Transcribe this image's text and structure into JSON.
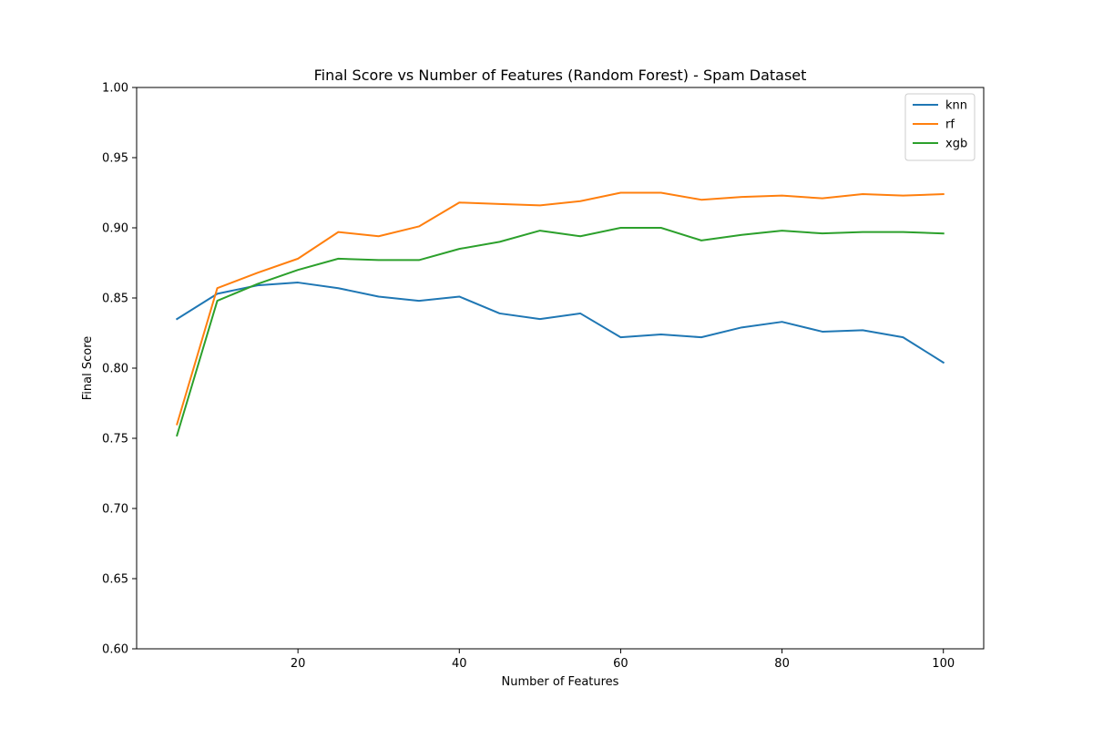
{
  "chart_data": {
    "type": "line",
    "title": "Final Score vs Number of Features (Random Forest) - Spam Dataset",
    "xlabel": "Number of Features",
    "ylabel": "Final Score",
    "xlim": [
      0,
      105
    ],
    "ylim": [
      0.6,
      1.0
    ],
    "xticks": [
      20,
      40,
      60,
      80,
      100
    ],
    "xtick_labels": [
      "20",
      "40",
      "60",
      "80",
      "100"
    ],
    "yticks": [
      0.6,
      0.65,
      0.7,
      0.75,
      0.8,
      0.85,
      0.9,
      0.95,
      1.0
    ],
    "ytick_labels": [
      "0.60",
      "0.65",
      "0.70",
      "0.75",
      "0.80",
      "0.85",
      "0.90",
      "0.95",
      "1.00"
    ],
    "grid": false,
    "legend_position": "top-right",
    "x": [
      5,
      10,
      15,
      20,
      25,
      30,
      35,
      40,
      45,
      50,
      55,
      60,
      65,
      70,
      75,
      80,
      85,
      90,
      95,
      100
    ],
    "series": [
      {
        "name": "knn",
        "color": "#1f77b4",
        "values": [
          0.835,
          0.853,
          0.859,
          0.861,
          0.857,
          0.851,
          0.848,
          0.851,
          0.839,
          0.835,
          0.839,
          0.822,
          0.824,
          0.822,
          0.829,
          0.833,
          0.826,
          0.827,
          0.822,
          0.804
        ]
      },
      {
        "name": "rf",
        "color": "#ff7f0e",
        "values": [
          0.76,
          0.857,
          0.868,
          0.878,
          0.897,
          0.894,
          0.901,
          0.918,
          0.917,
          0.916,
          0.919,
          0.925,
          0.925,
          0.92,
          0.922,
          0.923,
          0.921,
          0.924,
          0.923,
          0.924
        ]
      },
      {
        "name": "xgb",
        "color": "#2ca02c",
        "values": [
          0.752,
          0.848,
          0.86,
          0.87,
          0.878,
          0.877,
          0.877,
          0.885,
          0.89,
          0.898,
          0.894,
          0.9,
          0.9,
          0.891,
          0.895,
          0.898,
          0.896,
          0.897,
          0.897,
          0.896
        ]
      }
    ]
  }
}
